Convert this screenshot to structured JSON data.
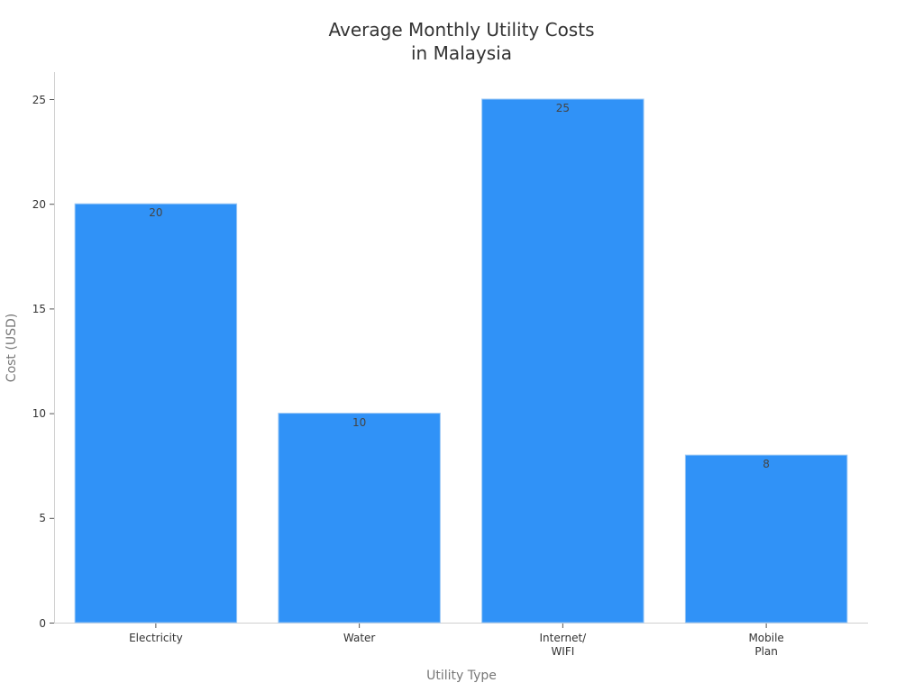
{
  "chart_data": {
    "type": "bar",
    "title": "Average Monthly Utility Costs in Malaysia",
    "title_lines": [
      "Average Monthly Utility Costs",
      "in Malaysia"
    ],
    "xlabel": "Utility Type",
    "ylabel": "Cost (USD)",
    "categories": [
      "Electricity",
      "Water",
      "Internet/ WIFI",
      "Mobile Plan"
    ],
    "category_lines": [
      [
        "Electricity"
      ],
      [
        "Water"
      ],
      [
        "Internet/",
        "WIFI"
      ],
      [
        "Mobile",
        "Plan"
      ]
    ],
    "values": [
      20,
      10,
      25,
      8
    ],
    "data_labels": [
      "20",
      "10",
      "25",
      "8"
    ],
    "ylim": [
      0,
      26.3
    ],
    "yticks": [
      "0",
      "5",
      "10",
      "15",
      "20",
      "25"
    ],
    "grid": false,
    "legend": null,
    "bar_color": "#3092f7"
  }
}
